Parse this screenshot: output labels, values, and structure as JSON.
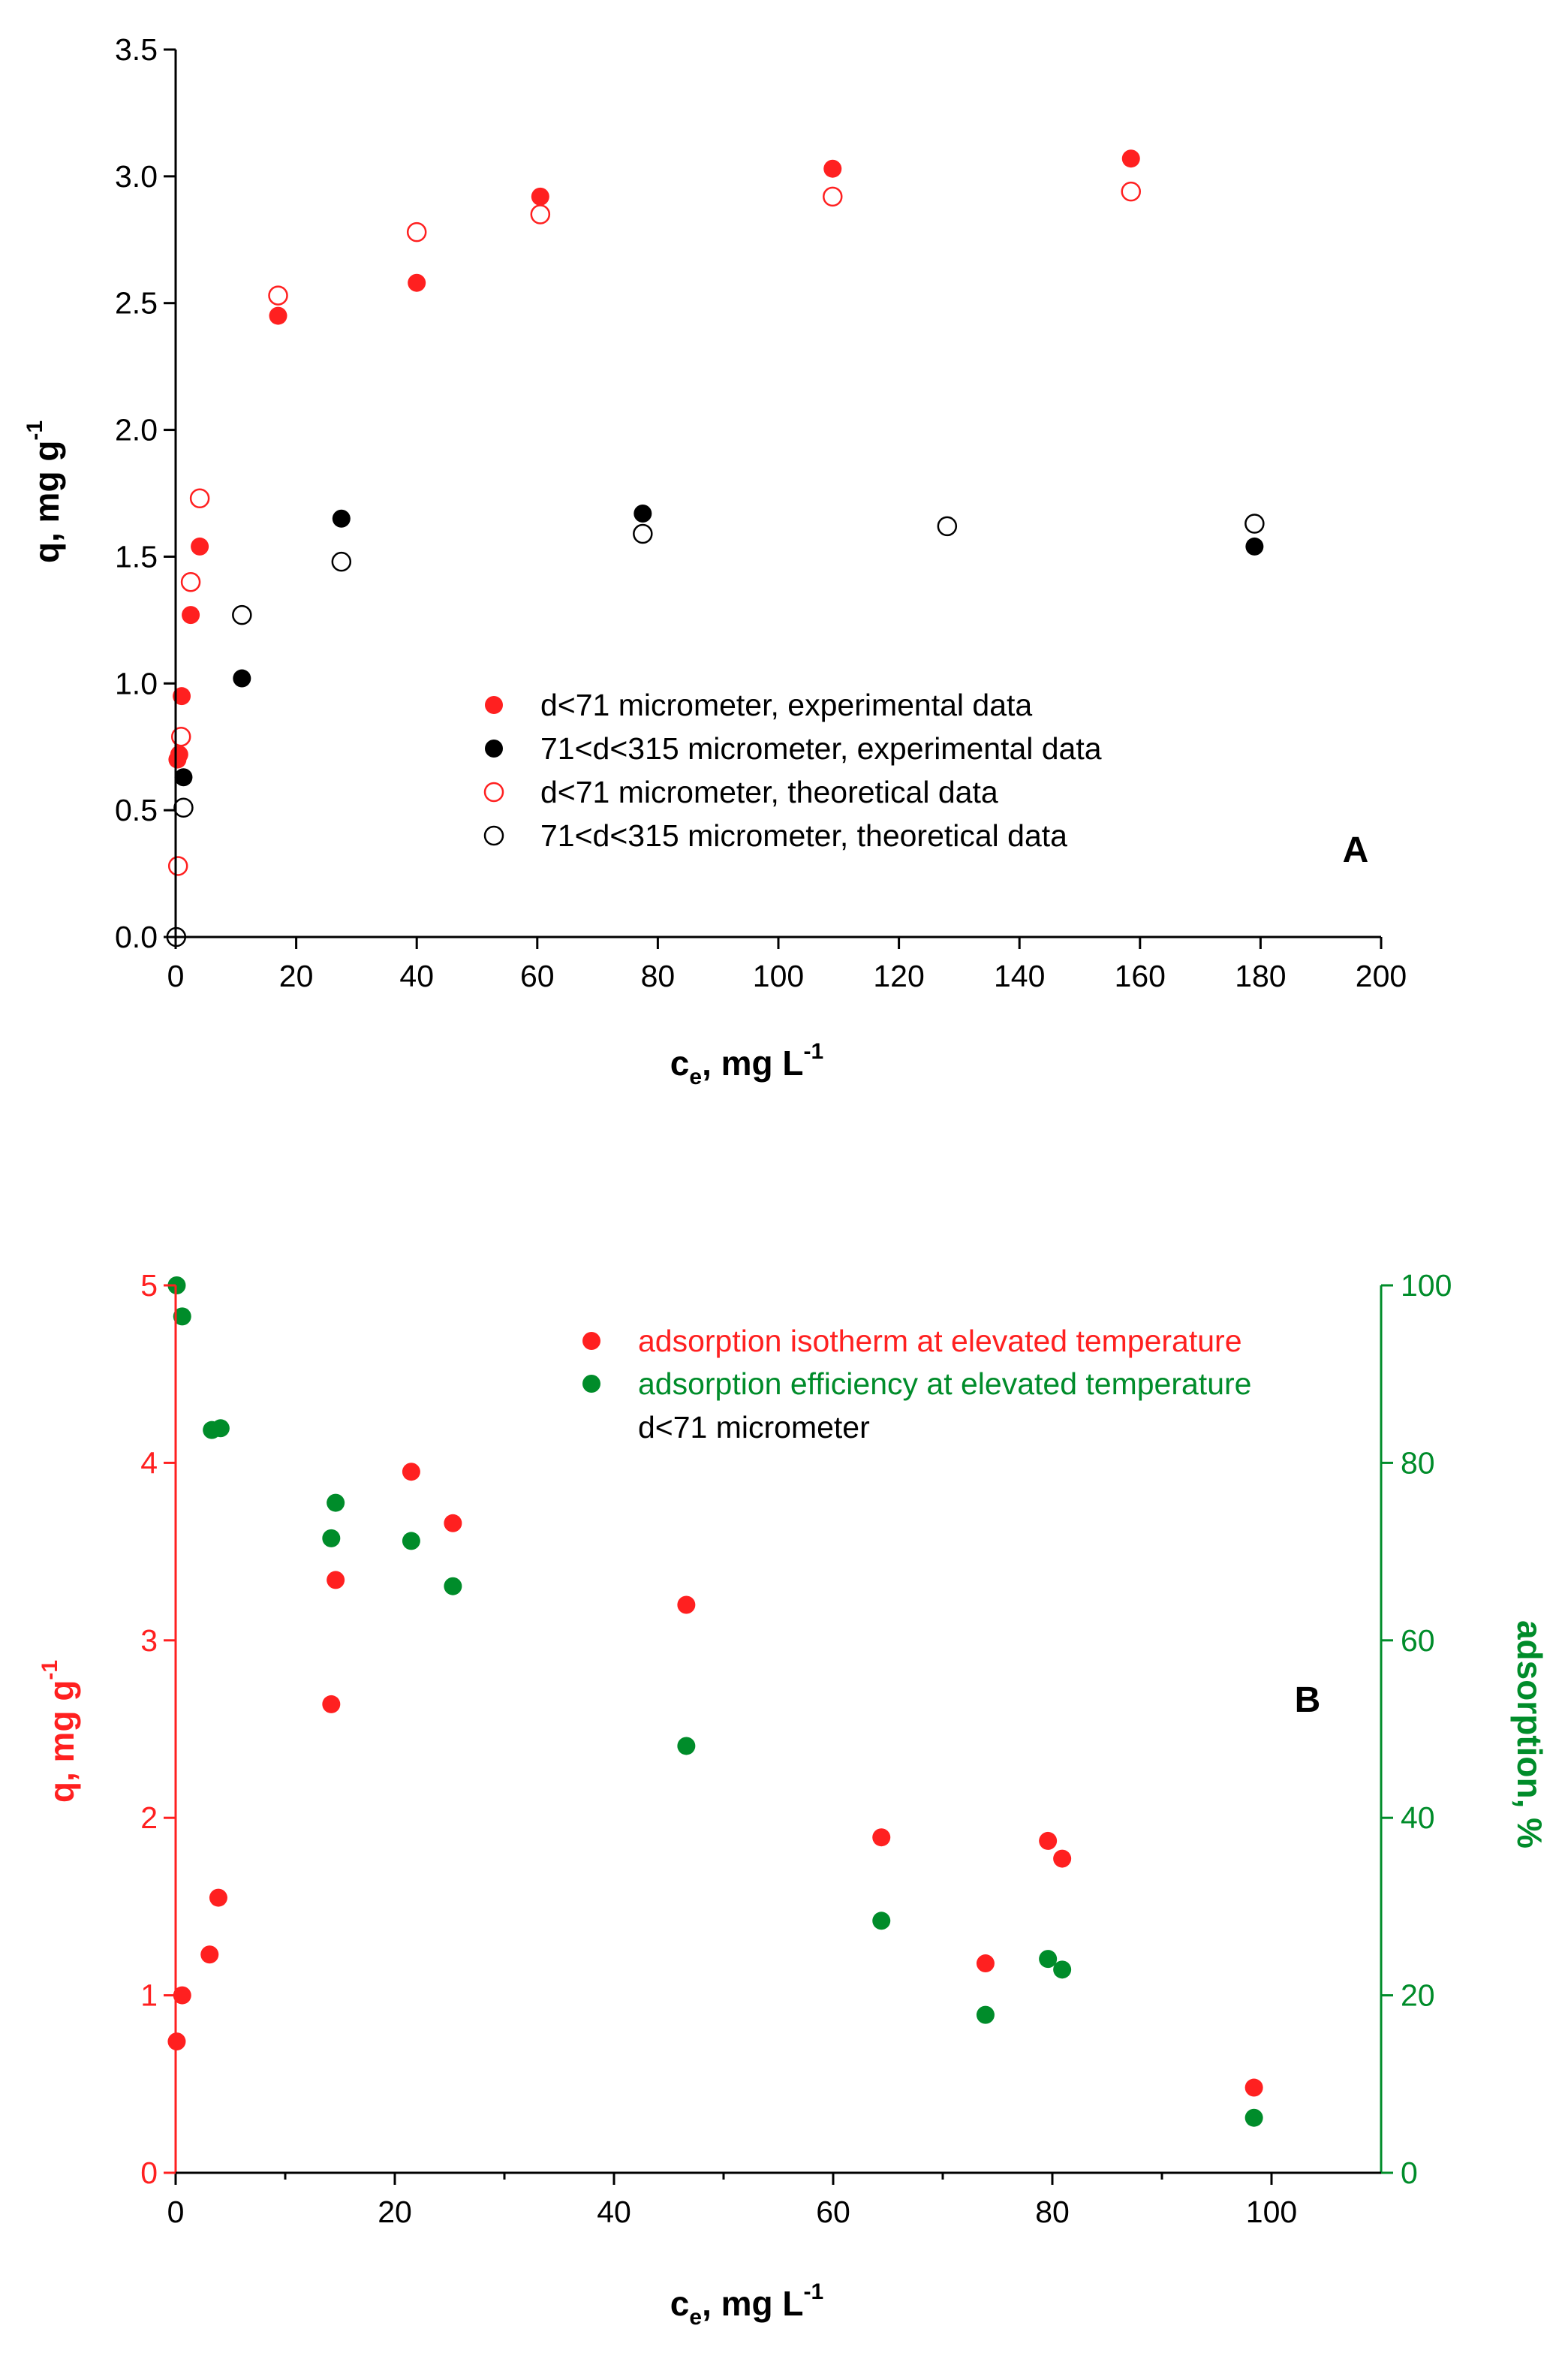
{
  "chart_data": [
    {
      "panel": "A",
      "type": "scatter",
      "title": "",
      "xlabel": "c",
      "xlabel_sub": "e",
      "xlabel_rest": ", mg L",
      "xlabel_sup": "-1",
      "ylabel": "q, mg g",
      "ylabel_sup": "-1",
      "xlim": [
        0,
        200
      ],
      "ylim": [
        0,
        3.5
      ],
      "xticks": [
        "0",
        "20",
        "40",
        "60",
        "80",
        "100",
        "120",
        "140",
        "160",
        "180",
        "200"
      ],
      "yticks": [
        "0.0",
        "0.5",
        "1.0",
        "1.5",
        "2.0",
        "2.5",
        "3.0",
        "3.5"
      ],
      "legend_position": "center-right",
      "series": [
        {
          "name": "d<71 micrometer, experimental data",
          "color": "#ff2020",
          "filled": true,
          "points": [
            [
              0.3,
              0.7
            ],
            [
              0.6,
              0.72
            ],
            [
              1.0,
              0.95
            ],
            [
              2.5,
              1.27
            ],
            [
              4.0,
              1.54
            ],
            [
              17,
              2.45
            ],
            [
              40,
              2.58
            ],
            [
              60.5,
              2.92
            ],
            [
              109,
              3.03
            ],
            [
              158.5,
              3.07
            ]
          ]
        },
        {
          "name": "71<d<315 micrometer, experimental data",
          "color": "#000000",
          "filled": true,
          "points": [
            [
              1.3,
              0.63
            ],
            [
              11,
              1.02
            ],
            [
              27.5,
              1.65
            ],
            [
              77.5,
              1.67
            ],
            [
              179,
              1.54
            ]
          ]
        },
        {
          "name": "d<71 micrometer, theoretical data",
          "color": "#ff2020",
          "filled": false,
          "points": [
            [
              0.4,
              0.28
            ],
            [
              0.9,
              0.79
            ],
            [
              2.5,
              1.4
            ],
            [
              4.0,
              1.73
            ],
            [
              17,
              2.53
            ],
            [
              40,
              2.78
            ],
            [
              60.5,
              2.85
            ],
            [
              109,
              2.92
            ],
            [
              158.5,
              2.94
            ]
          ]
        },
        {
          "name": "71<d<315 micrometer, theoretical data",
          "color": "#000000",
          "filled": false,
          "points": [
            [
              0.1,
              0.0
            ],
            [
              1.3,
              0.51
            ],
            [
              11,
              1.27
            ],
            [
              27.5,
              1.48
            ],
            [
              77.5,
              1.59
            ],
            [
              128,
              1.62
            ],
            [
              179,
              1.63
            ]
          ]
        }
      ]
    },
    {
      "panel": "B",
      "type": "scatter",
      "title": "",
      "xlabel": "c",
      "xlabel_sub": "e",
      "xlabel_rest": ", mg L",
      "xlabel_sup": "-1",
      "ylabel": "q, mg g",
      "ylabel_sup": "-1",
      "y2label": "adsorption, %",
      "xlim": [
        0,
        110
      ],
      "ylim": [
        0,
        5
      ],
      "y2lim": [
        0,
        100
      ],
      "xticks": [
        "0",
        "20",
        "40",
        "60",
        "80",
        "100"
      ],
      "yticks": [
        "0",
        "1",
        "2",
        "3",
        "4",
        "5"
      ],
      "y2ticks": [
        "0",
        "20",
        "40",
        "60",
        "80",
        "100"
      ],
      "legend_position": "top-right",
      "legend_note": "d<71 micrometer",
      "series": [
        {
          "name": "adsorption isotherm at elevated temperature",
          "color": "#ff2020",
          "axis": "left",
          "points": [
            [
              0.1,
              0.74
            ],
            [
              0.6,
              1.0
            ],
            [
              3.1,
              1.23
            ],
            [
              3.9,
              1.55
            ],
            [
              14.2,
              2.64
            ],
            [
              14.6,
              3.34
            ],
            [
              21.5,
              3.95
            ],
            [
              25.3,
              3.66
            ],
            [
              46.6,
              3.2
            ],
            [
              64.4,
              1.89
            ],
            [
              73.9,
              1.18
            ],
            [
              79.6,
              1.87
            ],
            [
              80.9,
              1.77
            ],
            [
              98.4,
              0.48
            ]
          ]
        },
        {
          "name": "adsorption efficiency at elevated temperature",
          "color": "#008c2a",
          "axis": "right",
          "points": [
            [
              0.1,
              100
            ],
            [
              0.6,
              96.5
            ],
            [
              3.3,
              83.7
            ],
            [
              4.1,
              83.9
            ],
            [
              14.2,
              71.5
            ],
            [
              14.6,
              75.5
            ],
            [
              21.5,
              71.2
            ],
            [
              25.3,
              66.1
            ],
            [
              46.6,
              48.1
            ],
            [
              64.4,
              28.4
            ],
            [
              73.9,
              17.8
            ],
            [
              79.6,
              24.1
            ],
            [
              80.9,
              22.9
            ],
            [
              98.4,
              6.2
            ]
          ]
        }
      ]
    }
  ],
  "colors": {
    "red": "#ff2020",
    "green": "#008c2a",
    "black": "#000000"
  }
}
